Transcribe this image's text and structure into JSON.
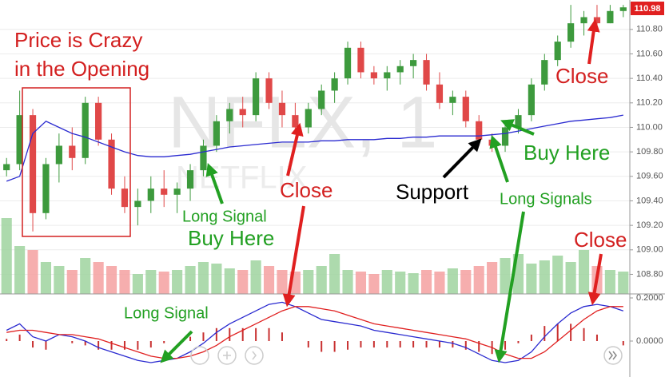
{
  "chart_data": {
    "type": "candlestick",
    "watermark": "NFLX, 1",
    "watermark_sub": "NETFLIX",
    "current_price": 110.98,
    "ylim": [
      108.64,
      111.04
    ],
    "yticks": [
      {
        "value": 110.8,
        "label": "110.80"
      },
      {
        "value": 110.6,
        "label": "110.60"
      },
      {
        "value": 110.4,
        "label": "110.40"
      },
      {
        "value": 110.2,
        "label": "110.20"
      },
      {
        "value": 110.0,
        "label": "110.00"
      },
      {
        "value": 109.8,
        "label": "109.80"
      },
      {
        "value": 109.6,
        "label": "109.60"
      },
      {
        "value": 109.4,
        "label": "109.40"
      },
      {
        "value": 109.2,
        "label": "109.20"
      },
      {
        "value": 109.0,
        "label": "109.00"
      },
      {
        "value": 108.8,
        "label": "108.80"
      }
    ],
    "grid": true,
    "up_color": "#3d9a3d",
    "down_color": "#e04848",
    "volume_up_color": "#9fd39f",
    "volume_down_color": "#f4a0a0",
    "candles": [
      [
        109.65,
        109.75,
        109.6,
        109.7
      ],
      [
        109.7,
        110.3,
        109.65,
        110.1
      ],
      [
        110.1,
        110.15,
        109.15,
        109.3
      ],
      [
        109.3,
        109.75,
        109.25,
        109.7
      ],
      [
        109.7,
        109.95,
        109.55,
        109.85
      ],
      [
        109.85,
        110.0,
        109.65,
        109.75
      ],
      [
        109.75,
        110.25,
        109.7,
        110.2
      ],
      [
        110.2,
        110.25,
        109.85,
        109.9
      ],
      [
        109.9,
        109.95,
        109.45,
        109.5
      ],
      [
        109.5,
        109.6,
        109.3,
        109.35
      ],
      [
        109.35,
        109.5,
        109.2,
        109.4
      ],
      [
        109.4,
        109.6,
        109.3,
        109.5
      ],
      [
        109.5,
        109.65,
        109.35,
        109.45
      ],
      [
        109.45,
        109.55,
        109.3,
        109.5
      ],
      [
        109.5,
        109.7,
        109.4,
        109.65
      ],
      [
        109.65,
        109.9,
        109.6,
        109.85
      ],
      [
        109.85,
        110.1,
        109.8,
        110.05
      ],
      [
        110.05,
        110.2,
        109.95,
        110.15
      ],
      [
        110.15,
        110.25,
        110.0,
        110.1
      ],
      [
        110.1,
        110.45,
        110.05,
        110.4
      ],
      [
        110.4,
        110.45,
        110.15,
        110.2
      ],
      [
        110.2,
        110.3,
        110.0,
        110.1
      ],
      [
        110.1,
        110.2,
        109.95,
        110.0
      ],
      [
        110.0,
        110.2,
        109.95,
        110.15
      ],
      [
        110.15,
        110.35,
        110.1,
        110.3
      ],
      [
        110.3,
        110.45,
        110.2,
        110.4
      ],
      [
        110.4,
        110.7,
        110.35,
        110.65
      ],
      [
        110.65,
        110.7,
        110.4,
        110.45
      ],
      [
        110.45,
        110.5,
        110.35,
        110.4
      ],
      [
        110.4,
        110.5,
        110.3,
        110.45
      ],
      [
        110.45,
        110.55,
        110.35,
        110.5
      ],
      [
        110.5,
        110.6,
        110.4,
        110.55
      ],
      [
        110.55,
        110.6,
        110.3,
        110.35
      ],
      [
        110.35,
        110.45,
        110.15,
        110.2
      ],
      [
        110.2,
        110.3,
        110.1,
        110.25
      ],
      [
        110.25,
        110.3,
        110.0,
        110.05
      ],
      [
        110.05,
        110.1,
        109.85,
        109.9
      ],
      [
        109.9,
        109.95,
        109.8,
        109.85
      ],
      [
        109.85,
        110.05,
        109.8,
        110.0
      ],
      [
        110.0,
        110.15,
        109.95,
        110.1
      ],
      [
        110.1,
        110.4,
        110.05,
        110.35
      ],
      [
        110.35,
        110.6,
        110.3,
        110.55
      ],
      [
        110.55,
        110.75,
        110.5,
        110.7
      ],
      [
        110.7,
        111.0,
        110.65,
        110.85
      ],
      [
        110.85,
        110.95,
        110.75,
        110.9
      ],
      [
        110.9,
        111.0,
        110.8,
        110.85
      ],
      [
        110.85,
        111.0,
        110.85,
        110.95
      ],
      [
        110.95,
        111.0,
        110.9,
        110.98
      ]
    ],
    "ma": {
      "color": "#2a2ad0",
      "values": [
        109.56,
        109.6,
        109.95,
        110.05,
        110.0,
        109.95,
        109.92,
        109.88,
        109.84,
        109.8,
        109.77,
        109.76,
        109.76,
        109.77,
        109.78,
        109.8,
        109.82,
        109.84,
        109.85,
        109.86,
        109.87,
        109.88,
        109.88,
        109.88,
        109.89,
        109.89,
        109.9,
        109.9,
        109.9,
        109.91,
        109.91,
        109.92,
        109.92,
        109.93,
        109.93,
        109.93,
        109.93,
        109.94,
        109.95,
        109.97,
        109.99,
        110.01,
        110.03,
        110.05,
        110.06,
        110.07,
        110.08,
        110.1
      ]
    },
    "volume_lim": [
      0,
      100
    ],
    "volume": [
      95,
      60,
      55,
      40,
      35,
      30,
      45,
      40,
      35,
      30,
      25,
      30,
      28,
      30,
      35,
      40,
      38,
      32,
      30,
      42,
      35,
      30,
      28,
      30,
      35,
      50,
      30,
      28,
      25,
      30,
      28,
      26,
      30,
      28,
      32,
      30,
      35,
      40,
      45,
      50,
      38,
      42,
      48,
      40,
      55,
      35,
      30,
      28
    ],
    "macd_ylim": [
      -0.1667,
      0.2185
    ],
    "macd_yticks": [
      {
        "value": 0.2,
        "label": "0.2000"
      },
      {
        "value": 0,
        "label": "0.0000"
      }
    ],
    "macd": {
      "color": "#2a2ad0",
      "values": [
        0.05,
        0.08,
        0.02,
        0.0,
        0.03,
        0.02,
        0.0,
        -0.03,
        -0.05,
        -0.07,
        -0.09,
        -0.1,
        -0.09,
        -0.08,
        -0.05,
        -0.01,
        0.04,
        0.08,
        0.11,
        0.14,
        0.17,
        0.18,
        0.16,
        0.13,
        0.1,
        0.09,
        0.08,
        0.07,
        0.05,
        0.04,
        0.03,
        0.02,
        0.01,
        0.0,
        -0.01,
        -0.03,
        -0.06,
        -0.09,
        -0.1,
        -0.09,
        -0.05,
        0.02,
        0.08,
        0.13,
        0.16,
        0.17,
        0.16,
        0.14
      ]
    },
    "signal": {
      "color": "#e02020",
      "values": [
        0.04,
        0.05,
        0.05,
        0.04,
        0.03,
        0.03,
        0.02,
        0.01,
        -0.01,
        -0.03,
        -0.05,
        -0.07,
        -0.08,
        -0.08,
        -0.07,
        -0.05,
        -0.02,
        0.02,
        0.05,
        0.08,
        0.11,
        0.14,
        0.16,
        0.16,
        0.15,
        0.14,
        0.12,
        0.1,
        0.08,
        0.07,
        0.06,
        0.05,
        0.04,
        0.03,
        0.02,
        0.01,
        -0.01,
        -0.03,
        -0.06,
        -0.08,
        -0.08,
        -0.05,
        0.0,
        0.05,
        0.1,
        0.14,
        0.16,
        0.16
      ]
    },
    "histogram": {
      "color": "#c83030",
      "values": [
        0.01,
        0.03,
        -0.03,
        -0.04,
        0,
        -0.01,
        -0.02,
        -0.04,
        -0.04,
        -0.04,
        -0.04,
        -0.03,
        -0.01,
        0,
        0.02,
        0.04,
        0.06,
        0.06,
        0.06,
        0.06,
        0.06,
        0.04,
        0,
        -0.03,
        -0.05,
        -0.05,
        -0.04,
        -0.03,
        -0.03,
        -0.03,
        -0.03,
        -0.03,
        -0.03,
        -0.03,
        -0.03,
        -0.04,
        -0.05,
        -0.06,
        -0.04,
        -0.01,
        0.03,
        0.07,
        0.08,
        0.08,
        0.06,
        0.03,
        0,
        -0.02
      ]
    },
    "annotations": [
      "Price is Crazy",
      "in the Opening",
      "Long Signal",
      "Buy Here",
      "Close",
      "Support",
      "Long Signals",
      "Buy Here",
      "Close",
      "Close",
      "Long Signal"
    ]
  }
}
